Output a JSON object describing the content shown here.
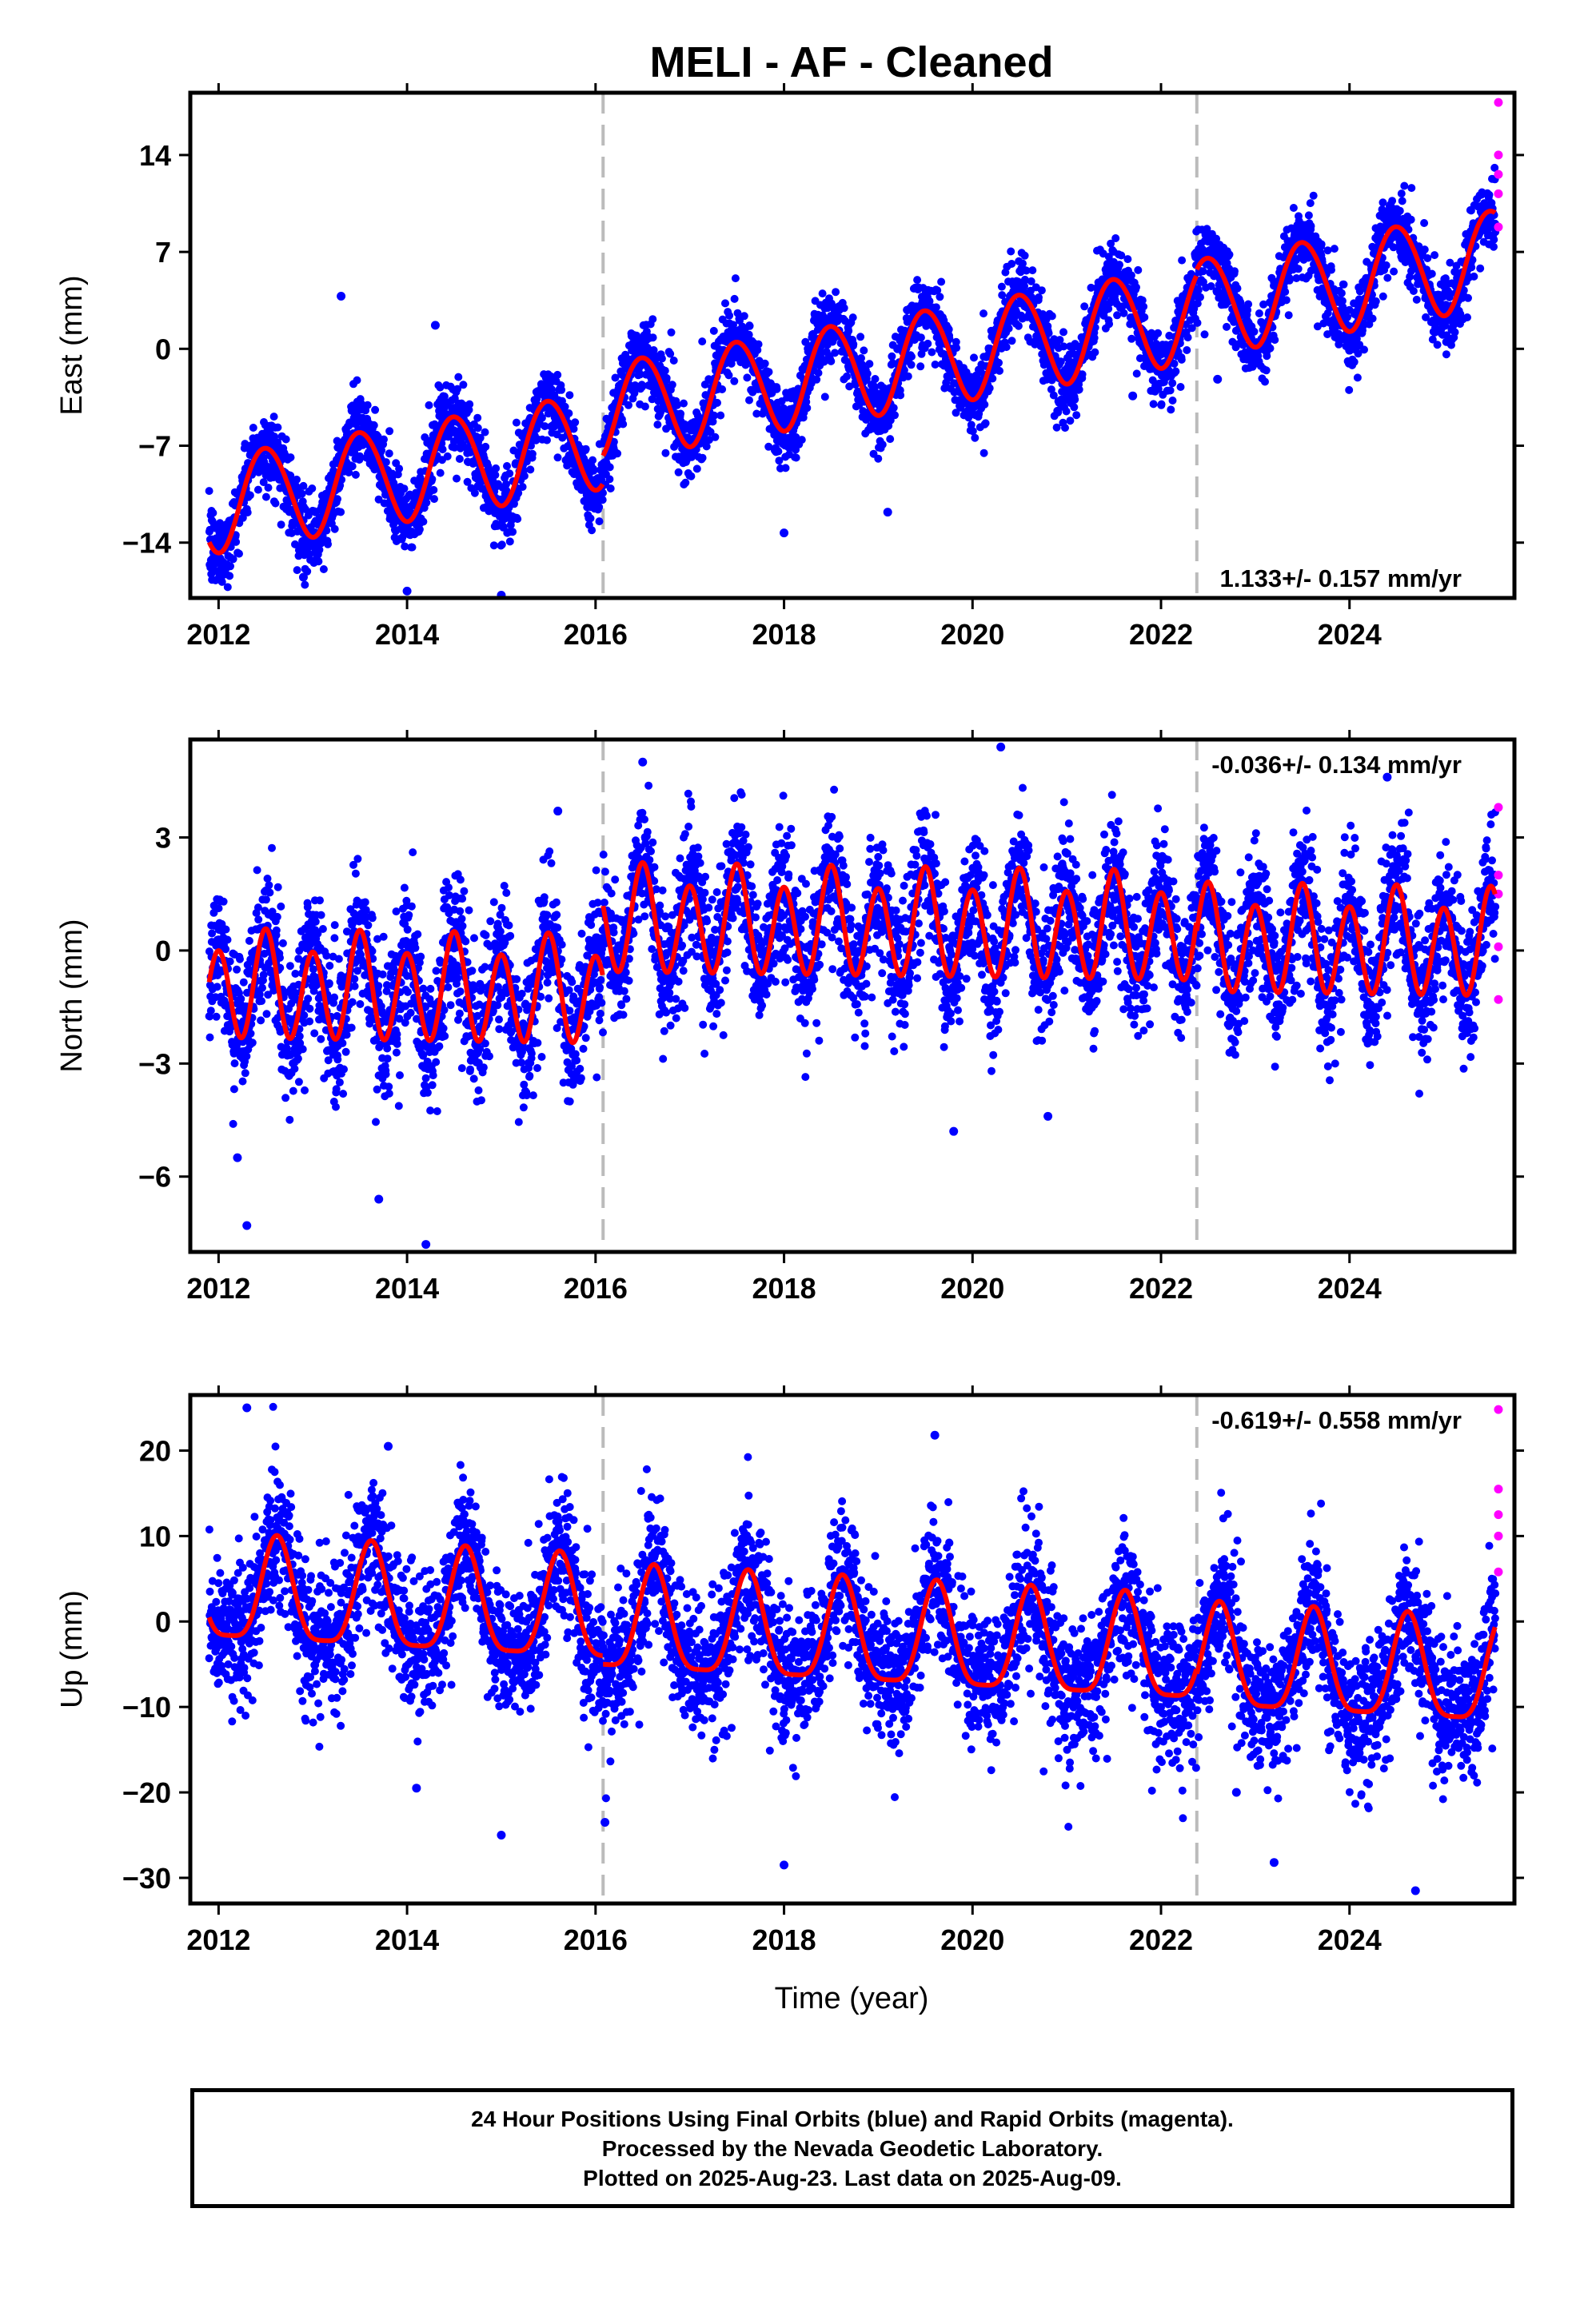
{
  "title": "MELI  - AF - Cleaned",
  "xlabel": "Time (year)",
  "footer": {
    "line1": "24 Hour Positions Using Final Orbits (blue) and Rapid Orbits (magenta).",
    "line2": "Processed by the Nevada Geodetic Laboratory.",
    "line3": "Plotted on 2025-Aug-23. Last data on 2025-Aug-09."
  },
  "colors": {
    "final_orbits": "#0000ff",
    "rapid_orbits": "#ff00ff",
    "model": "#ff0000",
    "event_lines": "#bbbbbb"
  },
  "chart_data": [
    {
      "type": "scatter",
      "panel": "east",
      "ylabel": "East (mm)",
      "xlim": [
        2011.7,
        2025.75
      ],
      "ylim": [
        -18,
        18.5
      ],
      "xticks": [
        2012,
        2014,
        2016,
        2018,
        2020,
        2022,
        2024
      ],
      "yticks": [
        -14,
        -7,
        0,
        7,
        14
      ],
      "rate_label": "1.133+/- 0.157 mm/yr",
      "rate_label_position": "bottom-right",
      "event_lines_x": [
        2016.08,
        2022.38
      ],
      "model": {
        "start": 2011.9,
        "end": 2025.55,
        "segments": [
          {
            "from": 2011.9,
            "to": 2016.08,
            "offset": -11.2
          },
          {
            "from": 2016.08,
            "to": 2022.38,
            "offset": -9.2
          },
          {
            "from": 2022.38,
            "to": 2025.6,
            "offset": -8.8
          }
        ],
        "rate_mm_per_yr": 1.133,
        "annual_amplitude": 3.5,
        "annual_peak_phase": 0.5,
        "semiannual_amplitude": 0.2,
        "semiannual_peak_phase": 0.3
      },
      "scatter_sigma": 1.3,
      "outliers": [
        [
          2013.3,
          3.8
        ],
        [
          2014.0,
          -17.5
        ],
        [
          2015.0,
          -17.8
        ],
        [
          2012.9,
          -16.5
        ],
        [
          2018.0,
          -13.3
        ],
        [
          2019.1,
          -11.8
        ],
        [
          2021.7,
          -3.4
        ],
        [
          2022.6,
          -2.2
        ],
        [
          2014.3,
          1.7
        ],
        [
          2024.0,
          -0.1
        ]
      ],
      "rapid_points": [
        [
          2025.58,
          17.8
        ],
        [
          2025.58,
          14.0
        ],
        [
          2025.58,
          12.6
        ],
        [
          2025.58,
          11.2
        ],
        [
          2025.58,
          8.8
        ]
      ]
    },
    {
      "type": "scatter",
      "panel": "north",
      "ylabel": "North (mm)",
      "xlim": [
        2011.7,
        2025.75
      ],
      "ylim": [
        -8,
        5.6
      ],
      "xticks": [
        2012,
        2014,
        2016,
        2018,
        2020,
        2022,
        2024
      ],
      "yticks": [
        -6,
        -3,
        0,
        3
      ],
      "rate_label": "-0.036+/- 0.134 mm/yr",
      "rate_label_position": "top-right",
      "event_lines_x": [
        2016.08,
        2022.38
      ],
      "model": {
        "start": 2011.9,
        "end": 2025.55,
        "segments": [
          {
            "from": 2011.9,
            "to": 2016.08,
            "offset": -1.0
          },
          {
            "from": 2016.08,
            "to": 2022.38,
            "offset": 0.9
          },
          {
            "from": 2022.38,
            "to": 2025.6,
            "offset": 0.6
          }
        ],
        "rate_mm_per_yr": -0.036,
        "annual_amplitude": 0.3,
        "annual_peak_phase": 0.5,
        "semiannual_amplitude": 1.3,
        "semiannual_peak_phase": 0.5
      },
      "scatter_sigma": 0.9,
      "outliers": [
        [
          2012.3,
          -7.3
        ],
        [
          2014.2,
          -7.8
        ],
        [
          2013.7,
          -6.6
        ],
        [
          2019.8,
          -4.8
        ],
        [
          2020.8,
          -4.4
        ],
        [
          2016.5,
          5.0
        ],
        [
          2020.3,
          5.4
        ],
        [
          2024.4,
          4.6
        ],
        [
          2012.2,
          -5.5
        ],
        [
          2015.6,
          3.7
        ]
      ],
      "rapid_points": [
        [
          2025.58,
          3.8
        ],
        [
          2025.58,
          2.0
        ],
        [
          2025.58,
          1.5
        ],
        [
          2025.58,
          0.1
        ],
        [
          2025.58,
          -1.3
        ]
      ]
    },
    {
      "type": "scatter",
      "panel": "up",
      "ylabel": "Up (mm)",
      "xlim": [
        2011.7,
        2025.75
      ],
      "ylim": [
        -33,
        26.5
      ],
      "xticks": [
        2012,
        2014,
        2016,
        2018,
        2020,
        2022,
        2024
      ],
      "yticks": [
        -30,
        -20,
        -10,
        0,
        10,
        20
      ],
      "rate_label": "-0.619+/- 0.558 mm/yr",
      "rate_label_position": "top-right",
      "event_lines_x": [
        2016.08,
        2022.38
      ],
      "model": {
        "start": 2011.9,
        "end": 2025.55,
        "segments": [
          {
            "from": 2011.9,
            "to": 2016.08,
            "offset": 3.0
          },
          {
            "from": 2016.08,
            "to": 2022.38,
            "offset": 2.0
          },
          {
            "from": 2022.38,
            "to": 2025.6,
            "offset": 1.3
          }
        ],
        "rate_mm_per_yr": -0.619,
        "annual_amplitude": 6.0,
        "annual_peak_phase": 0.62,
        "semiannual_amplitude": 1.5,
        "semiannual_peak_phase": 0.62,
        "rate_shape_mm_per_yr": -0.6
      },
      "scatter_sigma": 4.0,
      "outliers": [
        [
          2012.3,
          25.0
        ],
        [
          2015.0,
          -25.0
        ],
        [
          2018.0,
          -28.5
        ],
        [
          2023.2,
          -28.2
        ],
        [
          2024.7,
          -31.5
        ],
        [
          2019.6,
          21.8
        ],
        [
          2013.8,
          20.5
        ],
        [
          2016.1,
          -23.5
        ],
        [
          2014.1,
          -19.5
        ],
        [
          2022.8,
          -20.0
        ]
      ],
      "rapid_points": [
        [
          2025.58,
          24.8
        ],
        [
          2025.58,
          15.5
        ],
        [
          2025.58,
          12.5
        ],
        [
          2025.58,
          10.0
        ],
        [
          2025.58,
          5.8
        ]
      ]
    }
  ]
}
